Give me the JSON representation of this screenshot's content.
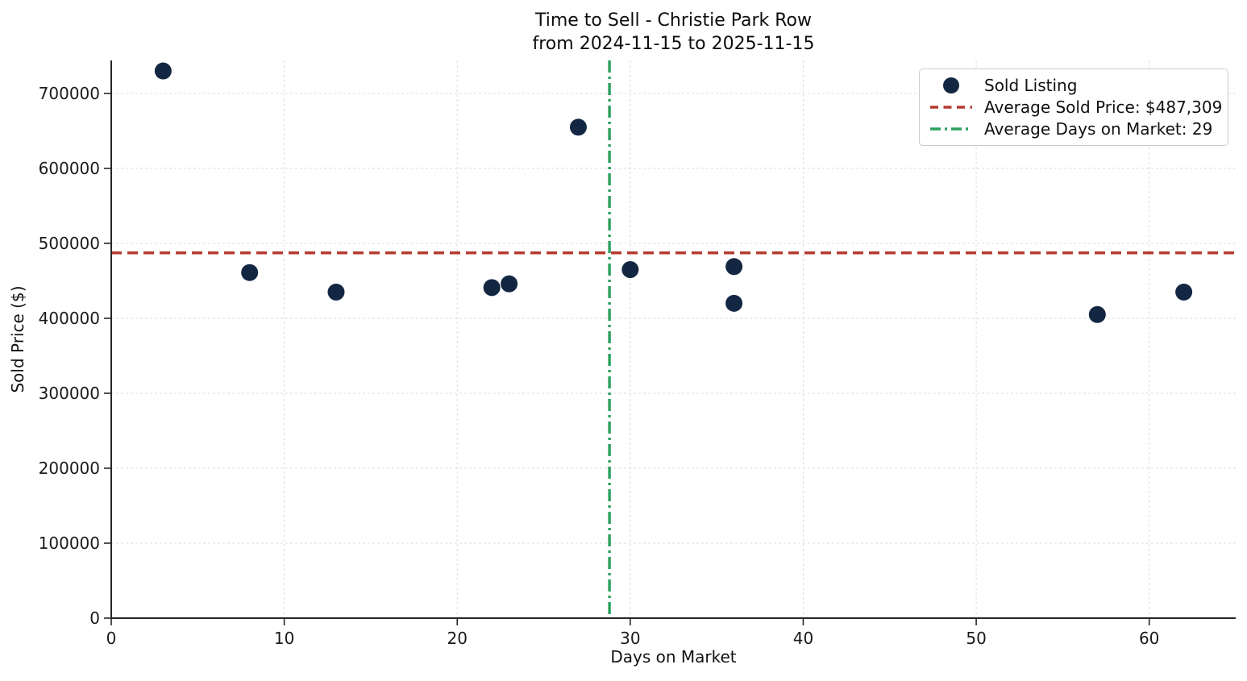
{
  "figure": {
    "title_line1": "Time to Sell - Christie Park Row",
    "title_line2": "from 2024-11-15 to 2025-11-15"
  },
  "axes": {
    "xlabel": "Days on Market",
    "ylabel": "Sold Price ($)"
  },
  "legend": {
    "position": "upper right",
    "items": [
      {
        "label": "Sold Listing",
        "swatch": "marker",
        "color": "#132742"
      },
      {
        "label": "Average Sold Price: $487,309",
        "swatch": "dashed-line",
        "color": "#b43a2e"
      },
      {
        "label": "Average Days on Market: 29",
        "swatch": "dashdot-line",
        "color": "#2ca05e"
      }
    ]
  },
  "chart_data": {
    "type": "scatter",
    "title": "Time to Sell - Christie Park Row from 2024-11-15 to 2025-11-15",
    "xlabel": "Days on Market",
    "ylabel": "Sold Price ($)",
    "series": [
      {
        "name": "Sold Listing",
        "points": [
          [
            3,
            730000
          ],
          [
            8,
            461000
          ],
          [
            13,
            435000
          ],
          [
            22,
            441000
          ],
          [
            23,
            446000
          ],
          [
            27,
            655000
          ],
          [
            30,
            465000
          ],
          [
            36,
            469000
          ],
          [
            36,
            420000
          ],
          [
            57,
            405000
          ],
          [
            62,
            435000
          ]
        ]
      }
    ],
    "avg_sold_price": 487309,
    "avg_days_on_market": 29,
    "avg_days_on_market_exact": 28.8,
    "xlim": [
      0,
      65
    ],
    "ylim": [
      0,
      744000
    ],
    "x_ticks": [
      0,
      10,
      20,
      30,
      40,
      50,
      60
    ],
    "y_ticks": [
      0,
      100000,
      200000,
      300000,
      400000,
      500000,
      600000,
      700000
    ],
    "grid": true,
    "legend_position": "upper right",
    "colors": {
      "point": "#132742",
      "avg_price_line": "#b43a2e",
      "avg_days_line": "#2ca05e",
      "grid": "#dcdcdc",
      "spine": "#262626"
    }
  }
}
